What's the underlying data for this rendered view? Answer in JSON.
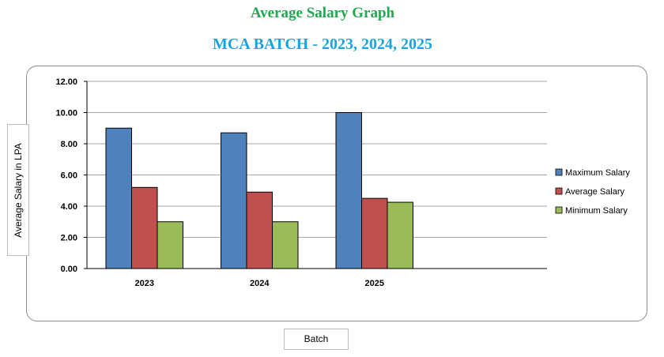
{
  "chart_data": {
    "type": "bar",
    "title": "Average Salary Graph",
    "subtitle": "MCA BATCH - 2023, 2024, 2025",
    "xlabel": "Batch",
    "ylabel": "Average Salary in LPA",
    "ylim": [
      0,
      12
    ],
    "yticks": [
      "0.00",
      "2.00",
      "4.00",
      "6.00",
      "8.00",
      "10.00",
      "12.00"
    ],
    "grid": true,
    "legend_position": "right",
    "categories": [
      "2023",
      "2024",
      "2025"
    ],
    "series": [
      {
        "name": "Maximum Salary",
        "color": "#4f81bd",
        "values": [
          9.0,
          8.7,
          10.0
        ]
      },
      {
        "name": "Average Salary",
        "color": "#c0504d",
        "values": [
          5.2,
          4.9,
          4.5
        ]
      },
      {
        "name": "Minimum Salary",
        "color": "#9bbb59",
        "values": [
          3.0,
          3.0,
          4.25
        ]
      }
    ]
  }
}
